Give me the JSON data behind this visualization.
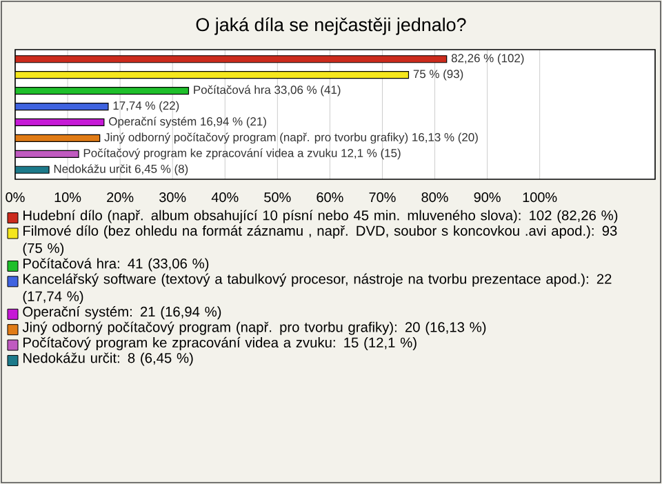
{
  "chart_data": {
    "type": "bar",
    "orientation": "horizontal",
    "title": "O jaká díla se nejčastěji jednalo?",
    "categories": [
      null,
      null,
      null,
      null,
      null,
      null,
      null,
      null
    ],
    "series": [
      {
        "name": "Hudební dílo (např. album obsahující 10 písní nebo 45 min. mluveného slova): 102 (82,26 %)",
        "color": "#cc2b1d",
        "values": [
          82.26,
          null,
          null,
          null,
          null,
          null,
          null,
          null
        ],
        "value_labels": [
          "82,26 % (102)",
          null,
          null,
          null,
          null,
          null,
          null,
          null
        ]
      },
      {
        "name": "Filmové dílo (bez ohledu na formát záznamu , např. DVD, soubor s koncovkou .avi apod.): 93 (75 %)",
        "color": "#f5e61c",
        "values": [
          null,
          75,
          null,
          null,
          null,
          null,
          null,
          null
        ],
        "value_labels": [
          null,
          "75 % (93)",
          null,
          null,
          null,
          null,
          null,
          null
        ]
      },
      {
        "name": "Počítačová hra: 41 (33,06 %)",
        "color": "#1fbf2b",
        "values": [
          null,
          null,
          33.06,
          null,
          null,
          null,
          null,
          null
        ],
        "value_labels": [
          null,
          null,
          "Počítačová hra 33,06 % (41)",
          null,
          null,
          null,
          null,
          null
        ]
      },
      {
        "name": "Kancelářský software (textový a tabulkový procesor, nástroje na tvorbu prezentace apod.): 22 (17,74 %)",
        "color": "#3f63e0",
        "values": [
          null,
          null,
          null,
          17.74,
          null,
          null,
          null,
          null
        ],
        "value_labels": [
          null,
          null,
          null,
          "17,74 % (22)",
          null,
          null,
          null,
          null
        ]
      },
      {
        "name": "Operační systém: 21 (16,94 %)",
        "color": "#c61ad6",
        "values": [
          null,
          null,
          null,
          null,
          16.94,
          null,
          null,
          null
        ],
        "value_labels": [
          null,
          null,
          null,
          null,
          "Operační systém 16,94 % (21)",
          null,
          null,
          null
        ]
      },
      {
        "name": "Jiný odborný počítačový program (např. pro tvorbu grafiky): 20 (16,13 %)",
        "color": "#e07b16",
        "values": [
          null,
          null,
          null,
          null,
          null,
          16.13,
          null,
          null
        ],
        "value_labels": [
          null,
          null,
          null,
          null,
          null,
          "Jiný odborný počítačový program (např. pro tvorbu grafiky) 16,13 % (20)",
          null,
          null
        ]
      },
      {
        "name": "Počítačový program ke zpracování videa a zvuku: 15 (12,1 %)",
        "color": "#c05ac0",
        "values": [
          null,
          null,
          null,
          null,
          null,
          null,
          12.1,
          null
        ],
        "value_labels": [
          null,
          null,
          null,
          null,
          null,
          null,
          "Počítačový program ke zpracování videa a zvuku 12,1 % (15)",
          null
        ]
      },
      {
        "name": "Nedokážu určit: 8 (6,45 %)",
        "color": "#1c7a8a",
        "values": [
          null,
          null,
          null,
          null,
          null,
          null,
          null,
          6.45
        ],
        "value_labels": [
          null,
          null,
          null,
          null,
          null,
          null,
          null,
          "Nedokážu určit 6,45 % (8)"
        ]
      }
    ],
    "xlim": [
      0,
      122
    ],
    "xticks": [
      {
        "value": 0,
        "label": "0%"
      },
      {
        "value": 10,
        "label": "10%"
      },
      {
        "value": 20,
        "label": "20%"
      },
      {
        "value": 30,
        "label": "30%"
      },
      {
        "value": 40,
        "label": "40%"
      },
      {
        "value": 50,
        "label": "50%"
      },
      {
        "value": 60,
        "label": "60%"
      },
      {
        "value": 70,
        "label": "70%"
      },
      {
        "value": 80,
        "label": "80%"
      },
      {
        "value": 90,
        "label": "90%"
      },
      {
        "value": 100,
        "label": "100%"
      }
    ],
    "grid": "x",
    "legend": "bottom"
  }
}
